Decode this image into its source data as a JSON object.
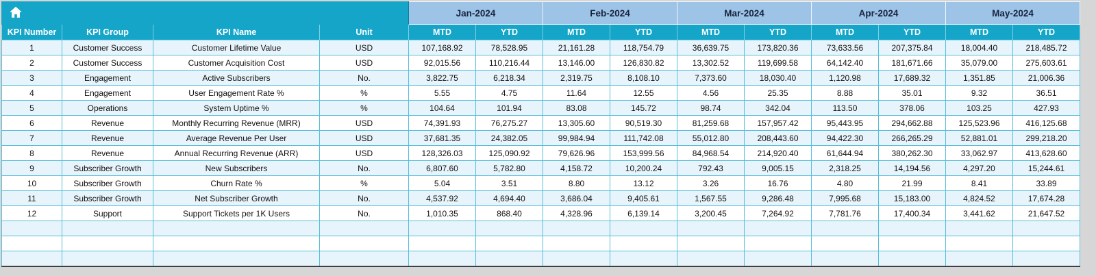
{
  "table": {
    "fixed_headers": [
      "KPI Number",
      "KPI Group",
      "KPI Name",
      "Unit"
    ],
    "months": [
      "Jan-2024",
      "Feb-2024",
      "Mar-2024",
      "Apr-2024",
      "May-2024"
    ],
    "sub_headers": [
      "MTD",
      "YTD"
    ],
    "rows": [
      [
        "1",
        "Customer Success",
        "Customer Lifetime Value",
        "USD",
        "107,168.92",
        "78,528.95",
        "21,161.28",
        "118,754.79",
        "36,639.75",
        "173,820.36",
        "73,633.56",
        "207,375.84",
        "18,004.40",
        "218,485.72"
      ],
      [
        "2",
        "Customer Success",
        "Customer Acquisition Cost",
        "USD",
        "92,015.56",
        "110,216.44",
        "13,146.00",
        "126,830.82",
        "13,302.52",
        "119,699.58",
        "64,142.40",
        "181,671.66",
        "35,079.00",
        "275,603.61"
      ],
      [
        "3",
        "Engagement",
        "Active Subscribers",
        "No.",
        "3,822.75",
        "6,218.34",
        "2,319.75",
        "8,108.10",
        "7,373.60",
        "18,030.40",
        "1,120.98",
        "17,689.32",
        "1,351.85",
        "21,006.36"
      ],
      [
        "4",
        "Engagement",
        "User Engagement Rate %",
        "%",
        "5.55",
        "4.75",
        "11.64",
        "12.55",
        "4.56",
        "25.35",
        "8.88",
        "35.01",
        "9.32",
        "36.51"
      ],
      [
        "5",
        "Operations",
        "System Uptime %",
        "%",
        "104.64",
        "101.94",
        "83.08",
        "145.72",
        "98.74",
        "342.04",
        "113.50",
        "378.06",
        "103.25",
        "427.93"
      ],
      [
        "6",
        "Revenue",
        "Monthly Recurring Revenue (MRR)",
        "USD",
        "74,391.93",
        "76,275.27",
        "13,305.60",
        "90,519.30",
        "81,259.68",
        "157,957.42",
        "95,443.95",
        "294,662.88",
        "125,523.96",
        "416,125.68"
      ],
      [
        "7",
        "Revenue",
        "Average Revenue Per User",
        "USD",
        "37,681.35",
        "24,382.05",
        "99,984.94",
        "111,742.08",
        "55,012.80",
        "208,443.60",
        "94,422.30",
        "266,265.29",
        "52,881.01",
        "299,218.20"
      ],
      [
        "8",
        "Revenue",
        "Annual Recurring Revenue (ARR)",
        "USD",
        "128,326.03",
        "125,090.92",
        "79,626.96",
        "153,999.56",
        "84,968.54",
        "214,920.40",
        "61,644.94",
        "380,262.30",
        "33,062.97",
        "413,628.60"
      ],
      [
        "9",
        "Subscriber Growth",
        "New Subscribers",
        "No.",
        "6,807.60",
        "5,782.80",
        "4,158.72",
        "10,200.24",
        "792.43",
        "9,005.15",
        "2,318.25",
        "14,194.56",
        "4,297.20",
        "15,244.61"
      ],
      [
        "10",
        "Subscriber Growth",
        "Churn Rate %",
        "%",
        "5.04",
        "3.51",
        "8.80",
        "13.12",
        "3.26",
        "16.76",
        "4.80",
        "21.99",
        "8.41",
        "33.89"
      ],
      [
        "11",
        "Subscriber Growth",
        "Net Subscriber Growth",
        "No.",
        "4,537.92",
        "4,694.40",
        "3,686.04",
        "9,405.61",
        "1,567.55",
        "9,286.48",
        "7,995.68",
        "15,183.00",
        "4,824.52",
        "17,674.28"
      ],
      [
        "12",
        "Support",
        "Support Tickets per 1K Users",
        "No.",
        "1,010.35",
        "868.40",
        "4,328.96",
        "6,139.14",
        "3,200.45",
        "7,264.92",
        "7,781.76",
        "17,400.34",
        "3,441.62",
        "21,647.52"
      ]
    ],
    "empty_row_count": 3
  },
  "icons": {
    "home": "home-icon"
  },
  "colors": {
    "teal_header": "#14a5c9",
    "month_header_blue": "#9dc3e6",
    "row_stripe": "#e8f4fb",
    "grid_line": "#55bdda",
    "outer_border": "#3f3f3f",
    "page_background": "#d6d6d6"
  }
}
